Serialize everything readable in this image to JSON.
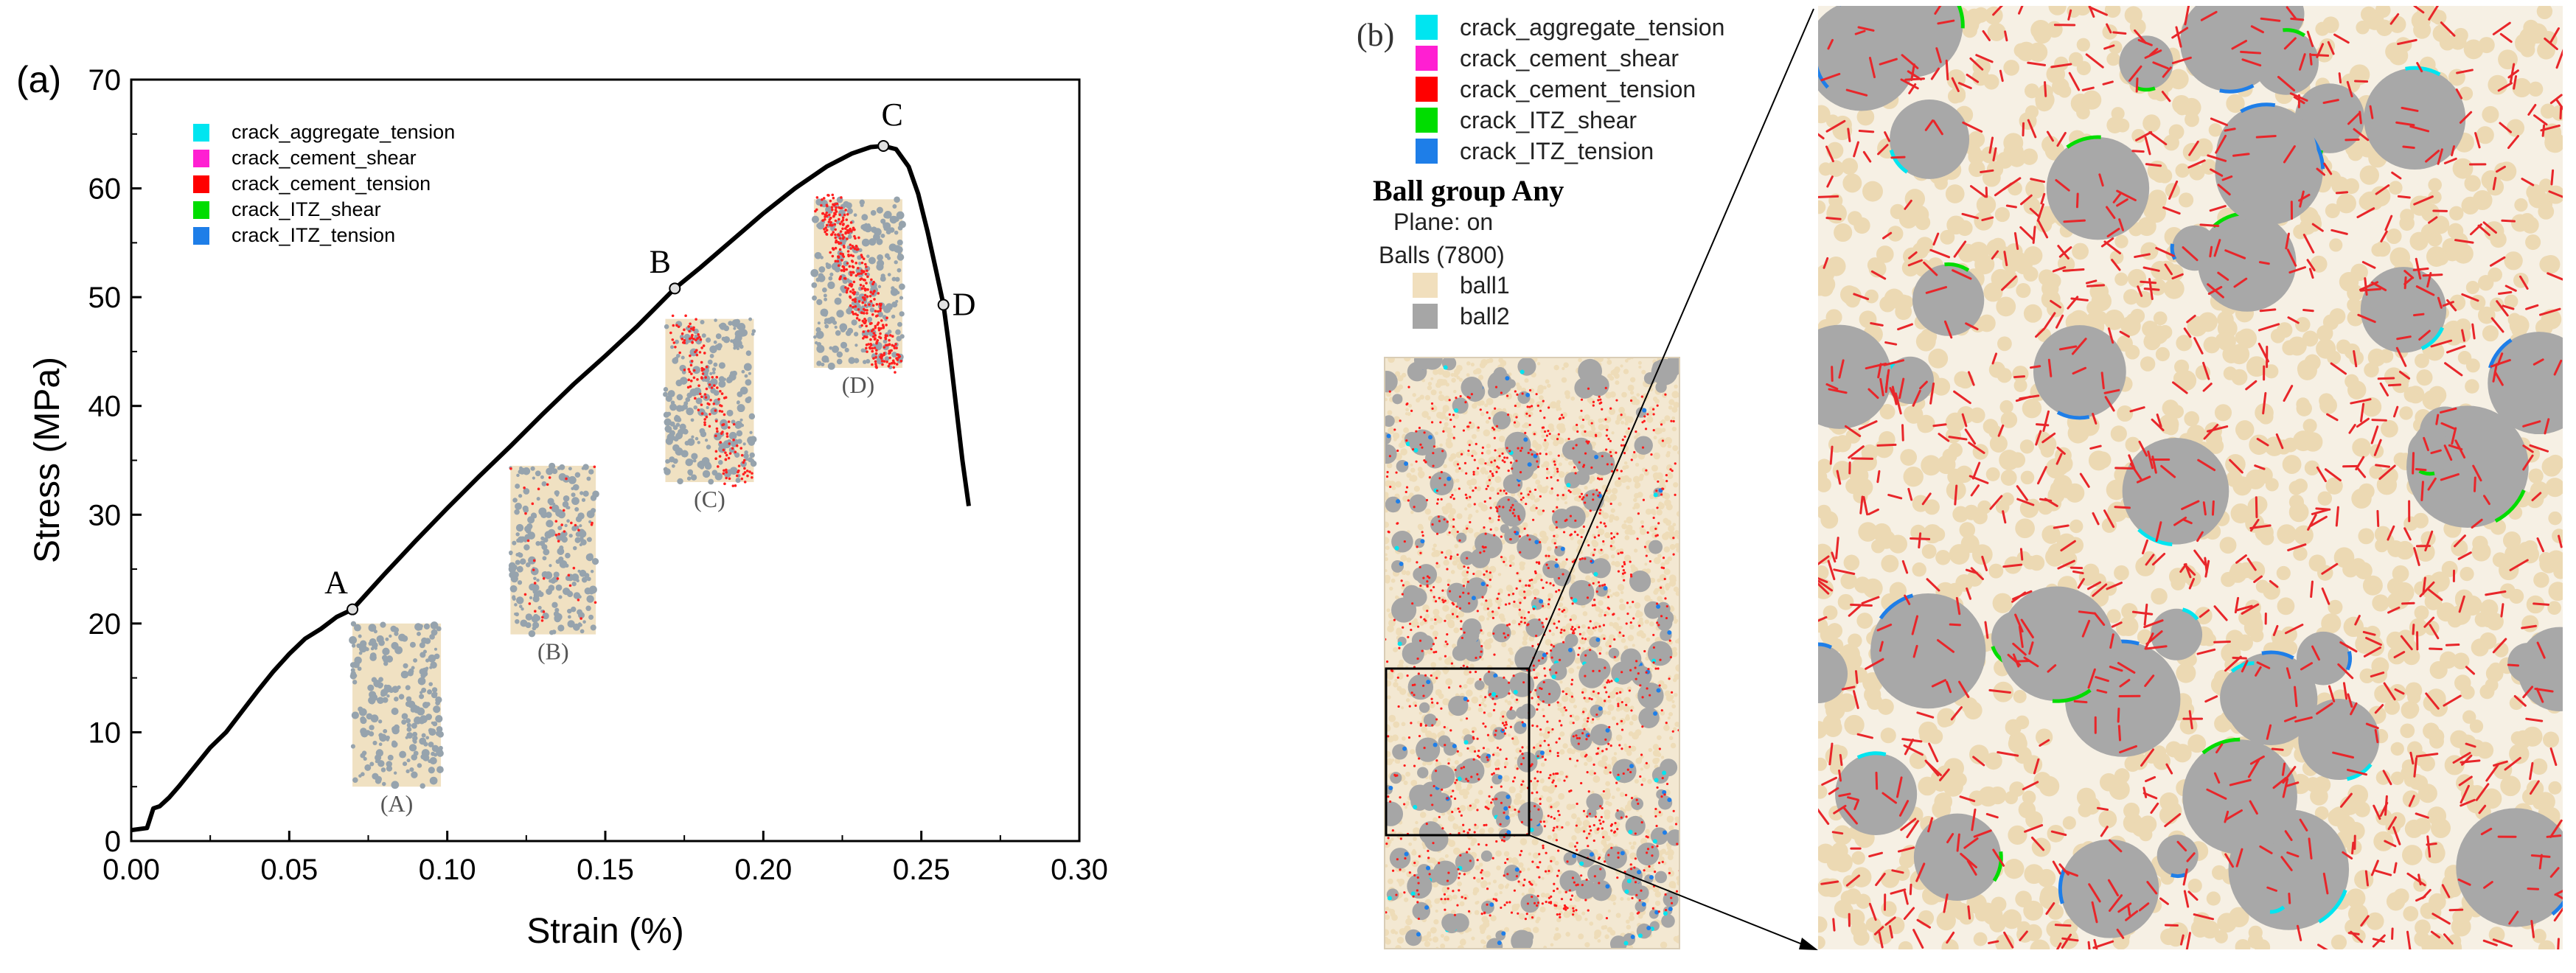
{
  "panel_a": {
    "label": "(a)",
    "xlabel": "Strain (%)",
    "ylabel": "Stress (MPa)",
    "legend": [
      {
        "name": "crack_aggregate_tension",
        "color": "#00e5f0"
      },
      {
        "name": "crack_cement_shear",
        "color": "#ff1fd2"
      },
      {
        "name": "crack_cement_tension",
        "color": "#ff0000"
      },
      {
        "name": "crack_ITZ_shear",
        "color": "#00dd00"
      },
      {
        "name": "crack_ITZ_tension",
        "color": "#1e7ee8"
      }
    ],
    "points": [
      {
        "name": "A",
        "x": 0.07,
        "y": 21.3
      },
      {
        "name": "B",
        "x": 0.172,
        "y": 50.8
      },
      {
        "name": "C",
        "x": 0.238,
        "y": 63.9
      },
      {
        "name": "D",
        "x": 0.257,
        "y": 49.3
      }
    ],
    "insets": [
      {
        "label": "(A)",
        "x0": 0.07,
        "x1": 0.098,
        "y0": 5,
        "y1": 20
      },
      {
        "label": "(B)",
        "x0": 0.12,
        "x1": 0.147,
        "y0": 19,
        "y1": 34.5
      },
      {
        "label": "(C)",
        "x0": 0.169,
        "x1": 0.197,
        "y0": 33,
        "y1": 48
      },
      {
        "label": "(D)",
        "x0": 0.216,
        "x1": 0.244,
        "y0": 43.5,
        "y1": 59
      }
    ]
  },
  "chart_data": {
    "type": "line",
    "title": "",
    "xlabel": "Strain (%)",
    "ylabel": "Stress (MPa)",
    "xlim": [
      0.0,
      0.3
    ],
    "ylim": [
      0,
      70
    ],
    "xticks": [
      "0.00",
      "0.05",
      "0.10",
      "0.15",
      "0.20",
      "0.25",
      "0.30"
    ],
    "yticks": [
      "0",
      "10",
      "20",
      "30",
      "40",
      "50",
      "60",
      "70"
    ],
    "grid": false,
    "series": [
      {
        "x": [
          0.0,
          0.005,
          0.007,
          0.009,
          0.012,
          0.015,
          0.02,
          0.025,
          0.03,
          0.035,
          0.04,
          0.045,
          0.05,
          0.055,
          0.06,
          0.065,
          0.07,
          0.08,
          0.09,
          0.1,
          0.11,
          0.12,
          0.13,
          0.14,
          0.15,
          0.16,
          0.172,
          0.18,
          0.19,
          0.2,
          0.21,
          0.22,
          0.228,
          0.234,
          0.238,
          0.242,
          0.246,
          0.249,
          0.252,
          0.255,
          0.257,
          0.259,
          0.261,
          0.263,
          0.265
        ],
        "y": [
          1.0,
          1.2,
          3.0,
          3.2,
          4.0,
          5.0,
          6.8,
          8.6,
          10.0,
          11.9,
          13.8,
          15.6,
          17.2,
          18.6,
          19.5,
          20.6,
          21.3,
          24.5,
          27.6,
          30.6,
          33.5,
          36.3,
          39.2,
          42.0,
          44.6,
          47.3,
          50.8,
          52.7,
          55.2,
          57.7,
          60.0,
          62.0,
          63.2,
          63.8,
          63.9,
          63.6,
          62.0,
          59.5,
          56.0,
          52.0,
          49.3,
          45.0,
          40.0,
          35.0,
          30.8
        ]
      }
    ],
    "legend": [
      "crack_aggregate_tension",
      "crack_cement_shear",
      "crack_cement_tension",
      "crack_ITZ_shear",
      "crack_ITZ_tension"
    ],
    "legend_placement": "top-left"
  },
  "panel_b": {
    "label": "(b)",
    "legend": [
      {
        "name": "crack_aggregate_tension",
        "color": "#00e5f0"
      },
      {
        "name": "crack_cement_shear",
        "color": "#ff1fd2"
      },
      {
        "name": "crack_cement_tension",
        "color": "#ff0000"
      },
      {
        "name": "crack_ITZ_shear",
        "color": "#00dd00"
      },
      {
        "name": "crack_ITZ_tension",
        "color": "#1e7ee8"
      }
    ],
    "ball_group_title": "Ball group Any",
    "plane_line": "Plane: on",
    "balls_line": "Balls (7800)",
    "ball_items": [
      {
        "name": "ball1",
        "color": "#f1dfbd"
      },
      {
        "name": "ball2",
        "color": "#a6a6a6"
      }
    ]
  },
  "colors": {
    "cement": "#eedcb8",
    "aggregate": "#a8a8a8",
    "curve": "#000000"
  }
}
